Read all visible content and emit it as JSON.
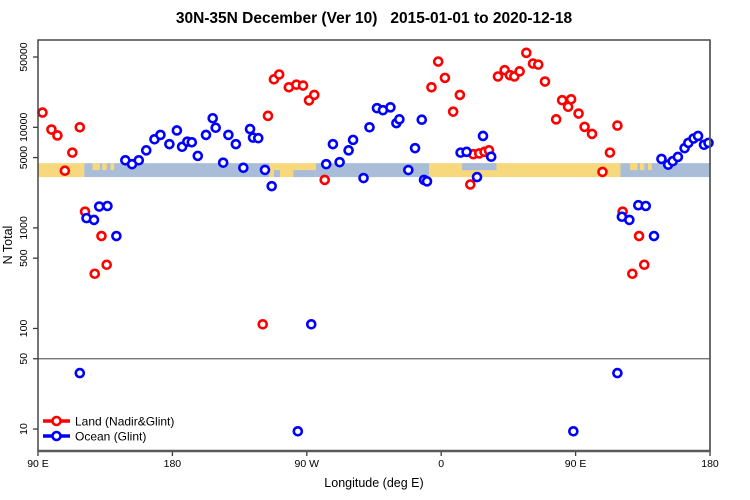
{
  "chart_data": {
    "type": "scatter",
    "title": "30N-35N December (Ver 10)   2015-01-01 to 2020-12-18",
    "xlabel": "Longitude (deg E)",
    "ylabel": "N Total",
    "x_axis": {
      "min": 90,
      "max": 540,
      "unit": "deg E (wrapping 90E → 180 → 90W → 0 → 90E → 180)",
      "ticks": [
        {
          "lon": 90,
          "label": "90 E"
        },
        {
          "lon": 180,
          "label": "180"
        },
        {
          "lon": 270,
          "label": "90 W"
        },
        {
          "lon": 360,
          "label": "0"
        },
        {
          "lon": 450,
          "label": "90 E"
        },
        {
          "lon": 540,
          "label": "180"
        }
      ]
    },
    "y_axis": {
      "scale": "log",
      "range": [
        6,
        74000
      ],
      "ticks": [
        {
          "value": 50000,
          "label": "50000"
        },
        {
          "value": 10000,
          "label": "10000"
        },
        {
          "value": 5000,
          "label": "5000"
        },
        {
          "value": 1000,
          "label": "1000"
        },
        {
          "value": 500,
          "label": "500"
        },
        {
          "value": 100,
          "label": "100"
        },
        {
          "value": 50,
          "label": "50"
        },
        {
          "value": 10,
          "label": "10"
        }
      ]
    },
    "ref_line": {
      "value": 50,
      "color": "#666666"
    },
    "map_band": {
      "top_value": 4400,
      "bottom_value": 3200,
      "colors": {
        "land": "#F7D87C",
        "ocean": "#A9BDD8"
      },
      "segments": [
        {
          "from": 90,
          "to": 121,
          "type": "land"
        },
        {
          "from": 121,
          "to": 245,
          "type": "ocean"
        },
        {
          "from": 245,
          "to": 276,
          "type": "land"
        },
        {
          "from": 276,
          "to": 352,
          "type": "ocean"
        },
        {
          "from": 352,
          "to": 480,
          "type": "land"
        },
        {
          "from": 480,
          "to": 540,
          "type": "ocean"
        }
      ],
      "overlays": [
        {
          "from": 126.5,
          "to": 131.5,
          "type": "land",
          "part": "top"
        },
        {
          "from": 133,
          "to": 136,
          "type": "land",
          "part": "top"
        },
        {
          "from": 138.5,
          "to": 141,
          "type": "land",
          "part": "top"
        },
        {
          "from": 248,
          "to": 252,
          "type": "ocean",
          "part": "bottom"
        },
        {
          "from": 261,
          "to": 276,
          "type": "ocean",
          "part": "bottom"
        },
        {
          "from": 374,
          "to": 397,
          "type": "ocean",
          "part": "top"
        },
        {
          "from": 486.5,
          "to": 491.5,
          "type": "land",
          "part": "top"
        },
        {
          "from": 493,
          "to": 496,
          "type": "land",
          "part": "top"
        },
        {
          "from": 498.5,
          "to": 501,
          "type": "land",
          "part": "top"
        }
      ]
    },
    "series": [
      {
        "name": "Land (Nadir&Glint)",
        "color": "#FF0000",
        "points": [
          [
            93,
            14000
          ],
          [
            99,
            9500
          ],
          [
            103,
            8300
          ],
          [
            108,
            3700
          ],
          [
            113,
            5600
          ],
          [
            118,
            10000
          ],
          [
            121.5,
            1450
          ],
          [
            128,
            350
          ],
          [
            132.5,
            830
          ],
          [
            136,
            430
          ],
          [
            240.5,
            110
          ],
          [
            244,
            13000
          ],
          [
            248,
            30000
          ],
          [
            251.5,
            33500
          ],
          [
            258,
            25000
          ],
          [
            263,
            26500
          ],
          [
            267.5,
            26000
          ],
          [
            271.5,
            18500
          ],
          [
            275,
            21000
          ],
          [
            282,
            3000
          ],
          [
            353.5,
            25000
          ],
          [
            358,
            45000
          ],
          [
            362.5,
            31000
          ],
          [
            368,
            14300
          ],
          [
            372.5,
            21000
          ],
          [
            379.5,
            2700
          ],
          [
            381.5,
            5400
          ],
          [
            385.5,
            5500
          ],
          [
            389,
            5700
          ],
          [
            392,
            5900
          ],
          [
            398,
            32000
          ],
          [
            402.5,
            37000
          ],
          [
            406,
            33000
          ],
          [
            409,
            32000
          ],
          [
            412.5,
            36000
          ],
          [
            417,
            55000
          ],
          [
            421.5,
            43000
          ],
          [
            425,
            42000
          ],
          [
            429.5,
            28500
          ],
          [
            437,
            12000
          ],
          [
            441,
            18600
          ],
          [
            445,
            16000
          ],
          [
            447,
            19000
          ],
          [
            452,
            13700
          ],
          [
            456,
            10100
          ],
          [
            461,
            8600
          ],
          [
            468,
            3600
          ],
          [
            473,
            5600
          ],
          [
            478,
            10400
          ],
          [
            481.5,
            1450
          ],
          [
            488,
            350
          ],
          [
            492.5,
            830
          ],
          [
            496,
            430
          ]
        ]
      },
      {
        "name": "Ocean (Glint)",
        "color": "#0000FF",
        "points": [
          [
            118,
            36
          ],
          [
            122.5,
            1250
          ],
          [
            127.5,
            1200
          ],
          [
            131,
            1630
          ],
          [
            136.5,
            1650
          ],
          [
            142.5,
            830
          ],
          [
            148.5,
            4700
          ],
          [
            153,
            4300
          ],
          [
            157.5,
            4700
          ],
          [
            162.5,
            5900
          ],
          [
            168,
            7600
          ],
          [
            172,
            8400
          ],
          [
            178,
            6800
          ],
          [
            183,
            9300
          ],
          [
            186.5,
            6400
          ],
          [
            190,
            7200
          ],
          [
            193,
            7100
          ],
          [
            197,
            5200
          ],
          [
            202.5,
            8400
          ],
          [
            207,
            12300
          ],
          [
            209,
            9900
          ],
          [
            214,
            4450
          ],
          [
            217.5,
            8400
          ],
          [
            222.5,
            6800
          ],
          [
            227.5,
            3960
          ],
          [
            232,
            9600
          ],
          [
            234,
            7900
          ],
          [
            237.5,
            7800
          ],
          [
            242,
            3770
          ],
          [
            246.5,
            2600
          ],
          [
            264,
            9.5
          ],
          [
            273,
            110
          ],
          [
            283,
            4300
          ],
          [
            287.5,
            6800
          ],
          [
            292,
            4500
          ],
          [
            298,
            5900
          ],
          [
            301,
            7500
          ],
          [
            308,
            3130
          ],
          [
            312,
            10000
          ],
          [
            317,
            15500
          ],
          [
            321,
            14800
          ],
          [
            326,
            15800
          ],
          [
            330,
            11000
          ],
          [
            332,
            12000
          ],
          [
            338,
            3760
          ],
          [
            342.5,
            6200
          ],
          [
            347,
            11900
          ],
          [
            348.5,
            3000
          ],
          [
            350.5,
            2900
          ],
          [
            373,
            5600
          ],
          [
            377,
            5700
          ],
          [
            384,
            3200
          ],
          [
            388,
            8200
          ],
          [
            393.5,
            5100
          ],
          [
            448.5,
            9.5
          ],
          [
            478,
            36
          ],
          [
            481,
            1290
          ],
          [
            486,
            1200
          ],
          [
            492,
            1680
          ],
          [
            497,
            1650
          ],
          [
            502.5,
            830
          ],
          [
            507.5,
            4850
          ],
          [
            512,
            4250
          ],
          [
            515,
            4600
          ],
          [
            518.5,
            5070
          ],
          [
            523,
            6200
          ],
          [
            525.5,
            7000
          ],
          [
            529,
            7740
          ],
          [
            532,
            8200
          ],
          [
            536,
            6700
          ],
          [
            539,
            7000
          ]
        ]
      }
    ],
    "legend": {
      "position": "bottom-left",
      "items": [
        {
          "label": "Land (Nadir&Glint)",
          "color": "#FF0000"
        },
        {
          "label": "Ocean (Glint)",
          "color": "#0000FF"
        }
      ]
    }
  }
}
